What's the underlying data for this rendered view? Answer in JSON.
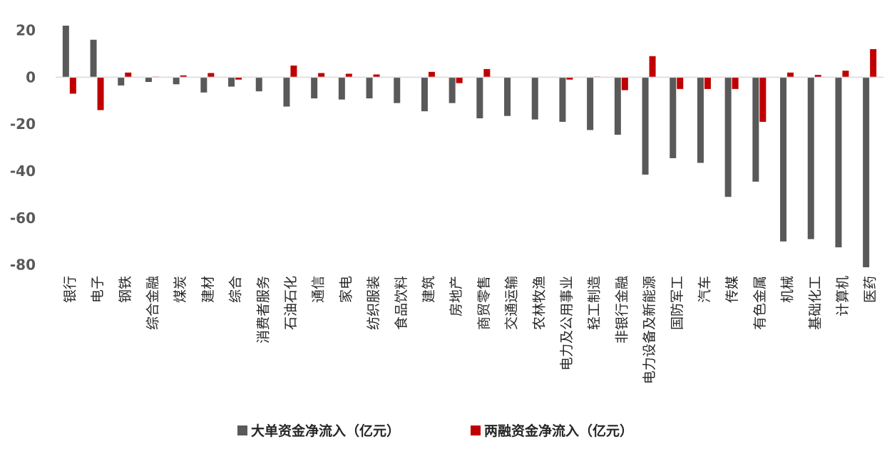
{
  "chart_data": {
    "type": "bar",
    "categories": [
      "银行",
      "电子",
      "钢铁",
      "综合金融",
      "煤炭",
      "建材",
      "综合",
      "消费者服务",
      "石油石化",
      "通信",
      "家电",
      "纺织服装",
      "食品饮料",
      "建筑",
      "房地产",
      "商贸零售",
      "交通运输",
      "农林牧渔",
      "电力及公用事业",
      "轻工制造",
      "非银行金融",
      "电力设备及新能源",
      "国防军工",
      "汽车",
      "传媒",
      "有色金属",
      "机械",
      "基础化工",
      "计算机",
      "医药"
    ],
    "series": [
      {
        "name": "大单资金净流入（亿元）",
        "color": "#595959",
        "values": [
          22,
          16,
          -3.5,
          -2,
          -3,
          -6.5,
          -4,
          -6,
          -12.5,
          -9,
          -9.5,
          -9,
          -11,
          -14.5,
          -11,
          -17.5,
          -16.5,
          -18,
          -19,
          -22.5,
          -24.5,
          -41.5,
          -34.5,
          -36.5,
          -51,
          -44.5,
          -70,
          -69,
          -72.5,
          -81
        ]
      },
      {
        "name": "两融资金净流入（亿元）",
        "color": "#C00000",
        "values": [
          -7,
          -14,
          2,
          0.3,
          0.8,
          1.8,
          -1,
          0,
          5,
          1.8,
          1.5,
          1.2,
          0,
          2.3,
          -2.5,
          3.5,
          0,
          0,
          -1,
          0.3,
          -5.5,
          9,
          -5,
          -5,
          -5,
          -19,
          2,
          1,
          2.8,
          12
        ]
      }
    ],
    "yticks": [
      20,
      0,
      -20,
      -40,
      -60,
      -80
    ],
    "ylim": [
      -81,
      22
    ],
    "legend_position": "bottom-center",
    "grid": false
  }
}
